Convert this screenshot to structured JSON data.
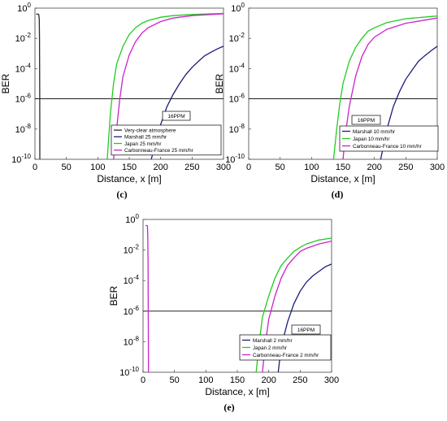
{
  "chart_data": [
    {
      "panel_label": "(c)",
      "type": "line",
      "scale": "log-y",
      "title": "",
      "xlabel": "Distance, x [m]",
      "ylabel": "BER",
      "xlim": [
        0,
        300
      ],
      "ylim": [
        1e-10,
        1
      ],
      "x_ticks": [
        "0",
        "50",
        "100",
        "150",
        "200",
        "250",
        "300"
      ],
      "y_ticks": [
        {
          "base": "10",
          "exp": "0"
        },
        {
          "base": "10",
          "exp": "-2"
        },
        {
          "base": "10",
          "exp": "-4"
        },
        {
          "base": "10",
          "exp": "-6"
        },
        {
          "base": "10",
          "exp": "-8"
        },
        {
          "base": "10",
          "exp": "-10"
        }
      ],
      "threshold": 1e-06,
      "annotation": "16PPM",
      "legend_position": "bottom-right",
      "grid": false,
      "series": [
        {
          "name": "Very-clear atmosphere",
          "color": "#2a2a2a",
          "x": [
            2.0,
            3.0,
            4.0,
            5.0,
            6.0,
            6.8,
            7.3,
            7.6,
            7.8
          ],
          "y": [
            0.4,
            0.4,
            0.4,
            0.4,
            0.38,
            0.2,
            0.01,
            1e-06,
            1e-10
          ]
        },
        {
          "name": "Marshall 25 mm/hr",
          "color": "#1c1c7a",
          "x": [
            185,
            200,
            210,
            220,
            230,
            240,
            250,
            260,
            270,
            280,
            290,
            300
          ],
          "y": [
            1e-10,
            2e-08,
            3e-07,
            2e-06,
            1e-05,
            4e-05,
            0.00012,
            0.0003,
            0.0007,
            0.0012,
            0.002,
            0.003
          ]
        },
        {
          "name": "Japan 25 mm/hr",
          "color": "#22cc22",
          "x": [
            115,
            120,
            125,
            130,
            140,
            150,
            160,
            170,
            180,
            200,
            220,
            250,
            300
          ],
          "y": [
            1e-10,
            1e-07,
            1e-05,
            0.0002,
            0.003,
            0.018,
            0.05,
            0.1,
            0.15,
            0.25,
            0.32,
            0.38,
            0.45
          ]
        },
        {
          "name": "Carbonneau-France 25 mm/hr",
          "color": "#cc22cc",
          "x": [
            125,
            130,
            135,
            140,
            150,
            160,
            170,
            180,
            200,
            220,
            250,
            300
          ],
          "y": [
            1e-10,
            1e-08,
            1e-06,
            3e-05,
            0.0008,
            0.006,
            0.022,
            0.05,
            0.13,
            0.22,
            0.32,
            0.42
          ]
        }
      ]
    },
    {
      "panel_label": "(d)",
      "type": "line",
      "scale": "log-y",
      "title": "",
      "xlabel": "Distance, x [m]",
      "ylabel": "BER",
      "xlim": [
        0,
        300
      ],
      "ylim": [
        1e-10,
        1
      ],
      "x_ticks": [
        "0",
        "50",
        "100",
        "150",
        "200",
        "250",
        "300"
      ],
      "y_ticks": [
        {
          "base": "10",
          "exp": "0"
        },
        {
          "base": "10",
          "exp": "-2"
        },
        {
          "base": "10",
          "exp": "-4"
        },
        {
          "base": "10",
          "exp": "-6"
        },
        {
          "base": "10",
          "exp": "-8"
        },
        {
          "base": "10",
          "exp": "-10"
        }
      ],
      "threshold": 1e-06,
      "annotation": "16PPM",
      "legend_position": "bottom-right",
      "grid": false,
      "series": [
        {
          "name": "Marshall 10 mm/hr",
          "color": "#1c1c7a",
          "x": [
            210,
            220,
            230,
            240,
            250,
            260,
            270,
            280,
            290,
            300
          ],
          "y": [
            1e-10,
            1e-08,
            3e-07,
            3e-06,
            2e-05,
            8e-05,
            0.0003,
            0.0007,
            0.0015,
            0.003
          ]
        },
        {
          "name": "Japan 10 mm/hr",
          "color": "#22cc22",
          "x": [
            135,
            140,
            145,
            150,
            160,
            170,
            180,
            190,
            200,
            220,
            250,
            300
          ],
          "y": [
            1e-10,
            1e-08,
            5e-07,
            1e-05,
            0.0003,
            0.0025,
            0.01,
            0.03,
            0.05,
            0.11,
            0.2,
            0.3
          ]
        },
        {
          "name": "Carbonneau-France 10 mm/hr",
          "color": "#cc22cc",
          "x": [
            150,
            155,
            160,
            170,
            180,
            190,
            200,
            220,
            250,
            300
          ],
          "y": [
            1e-10,
            1e-08,
            3e-07,
            3e-05,
            0.0006,
            0.004,
            0.012,
            0.04,
            0.1,
            0.22
          ]
        }
      ]
    },
    {
      "panel_label": "(e)",
      "type": "line",
      "scale": "log-y",
      "title": "",
      "xlabel": "Distance, x [m]",
      "ylabel": "BER",
      "xlim": [
        0,
        300
      ],
      "ylim": [
        1e-10,
        1
      ],
      "x_ticks": [
        "0",
        "50",
        "100",
        "150",
        "200",
        "250",
        "300"
      ],
      "y_ticks": [
        {
          "base": "10",
          "exp": "0"
        },
        {
          "base": "10",
          "exp": "-2"
        },
        {
          "base": "10",
          "exp": "-4"
        },
        {
          "base": "10",
          "exp": "-6"
        },
        {
          "base": "10",
          "exp": "-8"
        },
        {
          "base": "10",
          "exp": "-10"
        }
      ],
      "threshold": 1e-06,
      "annotation": "16PPM",
      "legend_position": "bottom-right",
      "grid": false,
      "series": [
        {
          "name": "Marshall 2 mm/hr",
          "color": "#1c1c7a",
          "x": [
            215,
            220,
            230,
            240,
            250,
            260,
            270,
            280,
            290,
            300
          ],
          "y": [
            1e-10,
            5e-09,
            2e-07,
            3e-06,
            2e-05,
            8e-05,
            0.0002,
            0.0004,
            0.0008,
            0.0012
          ]
        },
        {
          "name": "Japan 2 mm/hr",
          "color": "#22cc22",
          "x": [
            180,
            185,
            190,
            200,
            210,
            220,
            230,
            240,
            250,
            260,
            280,
            300
          ],
          "y": [
            1e-10,
            1e-08,
            4e-07,
            1e-05,
            0.00015,
            0.001,
            0.003,
            0.008,
            0.015,
            0.025,
            0.045,
            0.06
          ]
        },
        {
          "name": "Carbonneau-France 2 mm/hr",
          "color": "#cc22cc",
          "x": [
            190,
            195,
            200,
            210,
            220,
            230,
            240,
            250,
            260,
            280,
            300
          ],
          "y": [
            1e-10,
            1e-08,
            3e-07,
            1e-05,
            0.00015,
            0.001,
            0.003,
            0.008,
            0.013,
            0.025,
            0.038
          ]
        },
        {
          "color": "#cc22cc",
          "x": [
            4.0,
            5.0,
            6.0,
            7.0,
            7.5,
            8.0,
            8.3,
            8.6
          ],
          "y": [
            0.4,
            0.4,
            0.4,
            0.38,
            0.1,
            0.001,
            1e-06,
            1e-10
          ]
        }
      ]
    }
  ]
}
